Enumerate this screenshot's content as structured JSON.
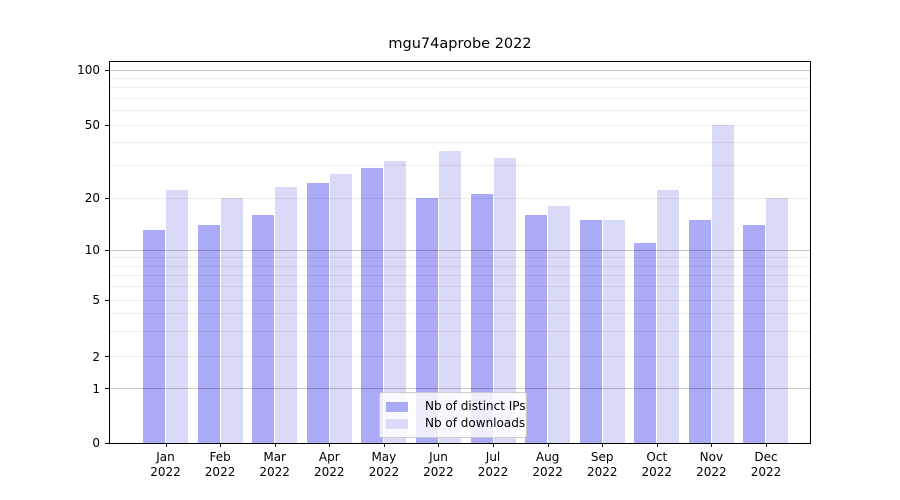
{
  "chart_data": {
    "type": "bar",
    "title": "mgu74aprobe 2022",
    "scale": "asinh (log-like with linear zero region)",
    "categories": [
      "Jan 2022",
      "Feb 2022",
      "Mar 2022",
      "Apr 2022",
      "May 2022",
      "Jun 2022",
      "Jul 2022",
      "Aug 2022",
      "Sep 2022",
      "Oct 2022",
      "Nov 2022",
      "Dec 2022"
    ],
    "series": [
      {
        "name": "Nb of distinct IPs",
        "color": "#aaaaf6",
        "values": [
          13,
          14,
          16,
          24,
          29,
          20,
          21,
          16,
          15,
          11,
          15,
          14
        ]
      },
      {
        "name": "Nb of downloads",
        "color": "#d9d9f8",
        "values": [
          22,
          20,
          23,
          27,
          32,
          36,
          33,
          18,
          15,
          22,
          50,
          20
        ]
      }
    ],
    "xlabel": "",
    "ylabel": "",
    "ylim": [
      0,
      111
    ],
    "yticks": [
      100,
      50,
      20,
      10,
      5,
      2,
      1,
      0
    ],
    "grid": {
      "decade_lines": [
        1,
        10,
        100
      ],
      "mid_lines": [
        2,
        5,
        20,
        50
      ],
      "minor_lines": [
        3,
        4,
        6,
        7,
        8,
        9,
        30,
        40,
        60,
        70,
        80,
        90
      ],
      "on_top_of_bars": true
    },
    "legend_position": "lower center"
  }
}
